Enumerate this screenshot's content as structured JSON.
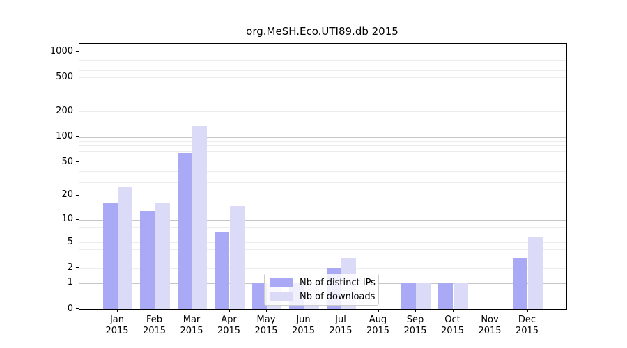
{
  "chart_data": {
    "type": "bar",
    "title": "org.MeSH.Eco.UTI89.db 2015",
    "categories": [
      "Jan 2015",
      "Feb 2015",
      "Mar 2015",
      "Apr 2015",
      "May 2015",
      "Jun 2015",
      "Jul 2015",
      "Aug 2015",
      "Sep 2015",
      "Oct 2015",
      "Nov 2015",
      "Dec 2015"
    ],
    "series": [
      {
        "name": "Nb of distinct IPs",
        "color": "#a9a9f5",
        "values": [
          16,
          13,
          65,
          7,
          1,
          1,
          2,
          0,
          1,
          1,
          0,
          3
        ]
      },
      {
        "name": "Nb of downloads",
        "color": "#dbdbf8",
        "values": [
          26,
          16,
          136,
          15,
          1,
          1,
          3,
          0,
          1,
          1,
          0,
          6
        ]
      }
    ],
    "yscale": "log1p",
    "y_ticks": [
      0,
      1,
      2,
      5,
      10,
      20,
      50,
      100,
      200,
      500,
      1000
    ],
    "ylim": [
      0,
      1230
    ],
    "grid": true,
    "legend": {
      "position": "lower-center"
    },
    "colors": {
      "axis": "#000000",
      "major_grid": "#c6c6c6",
      "minor_grid": "#ececec",
      "text": "#000000"
    }
  }
}
